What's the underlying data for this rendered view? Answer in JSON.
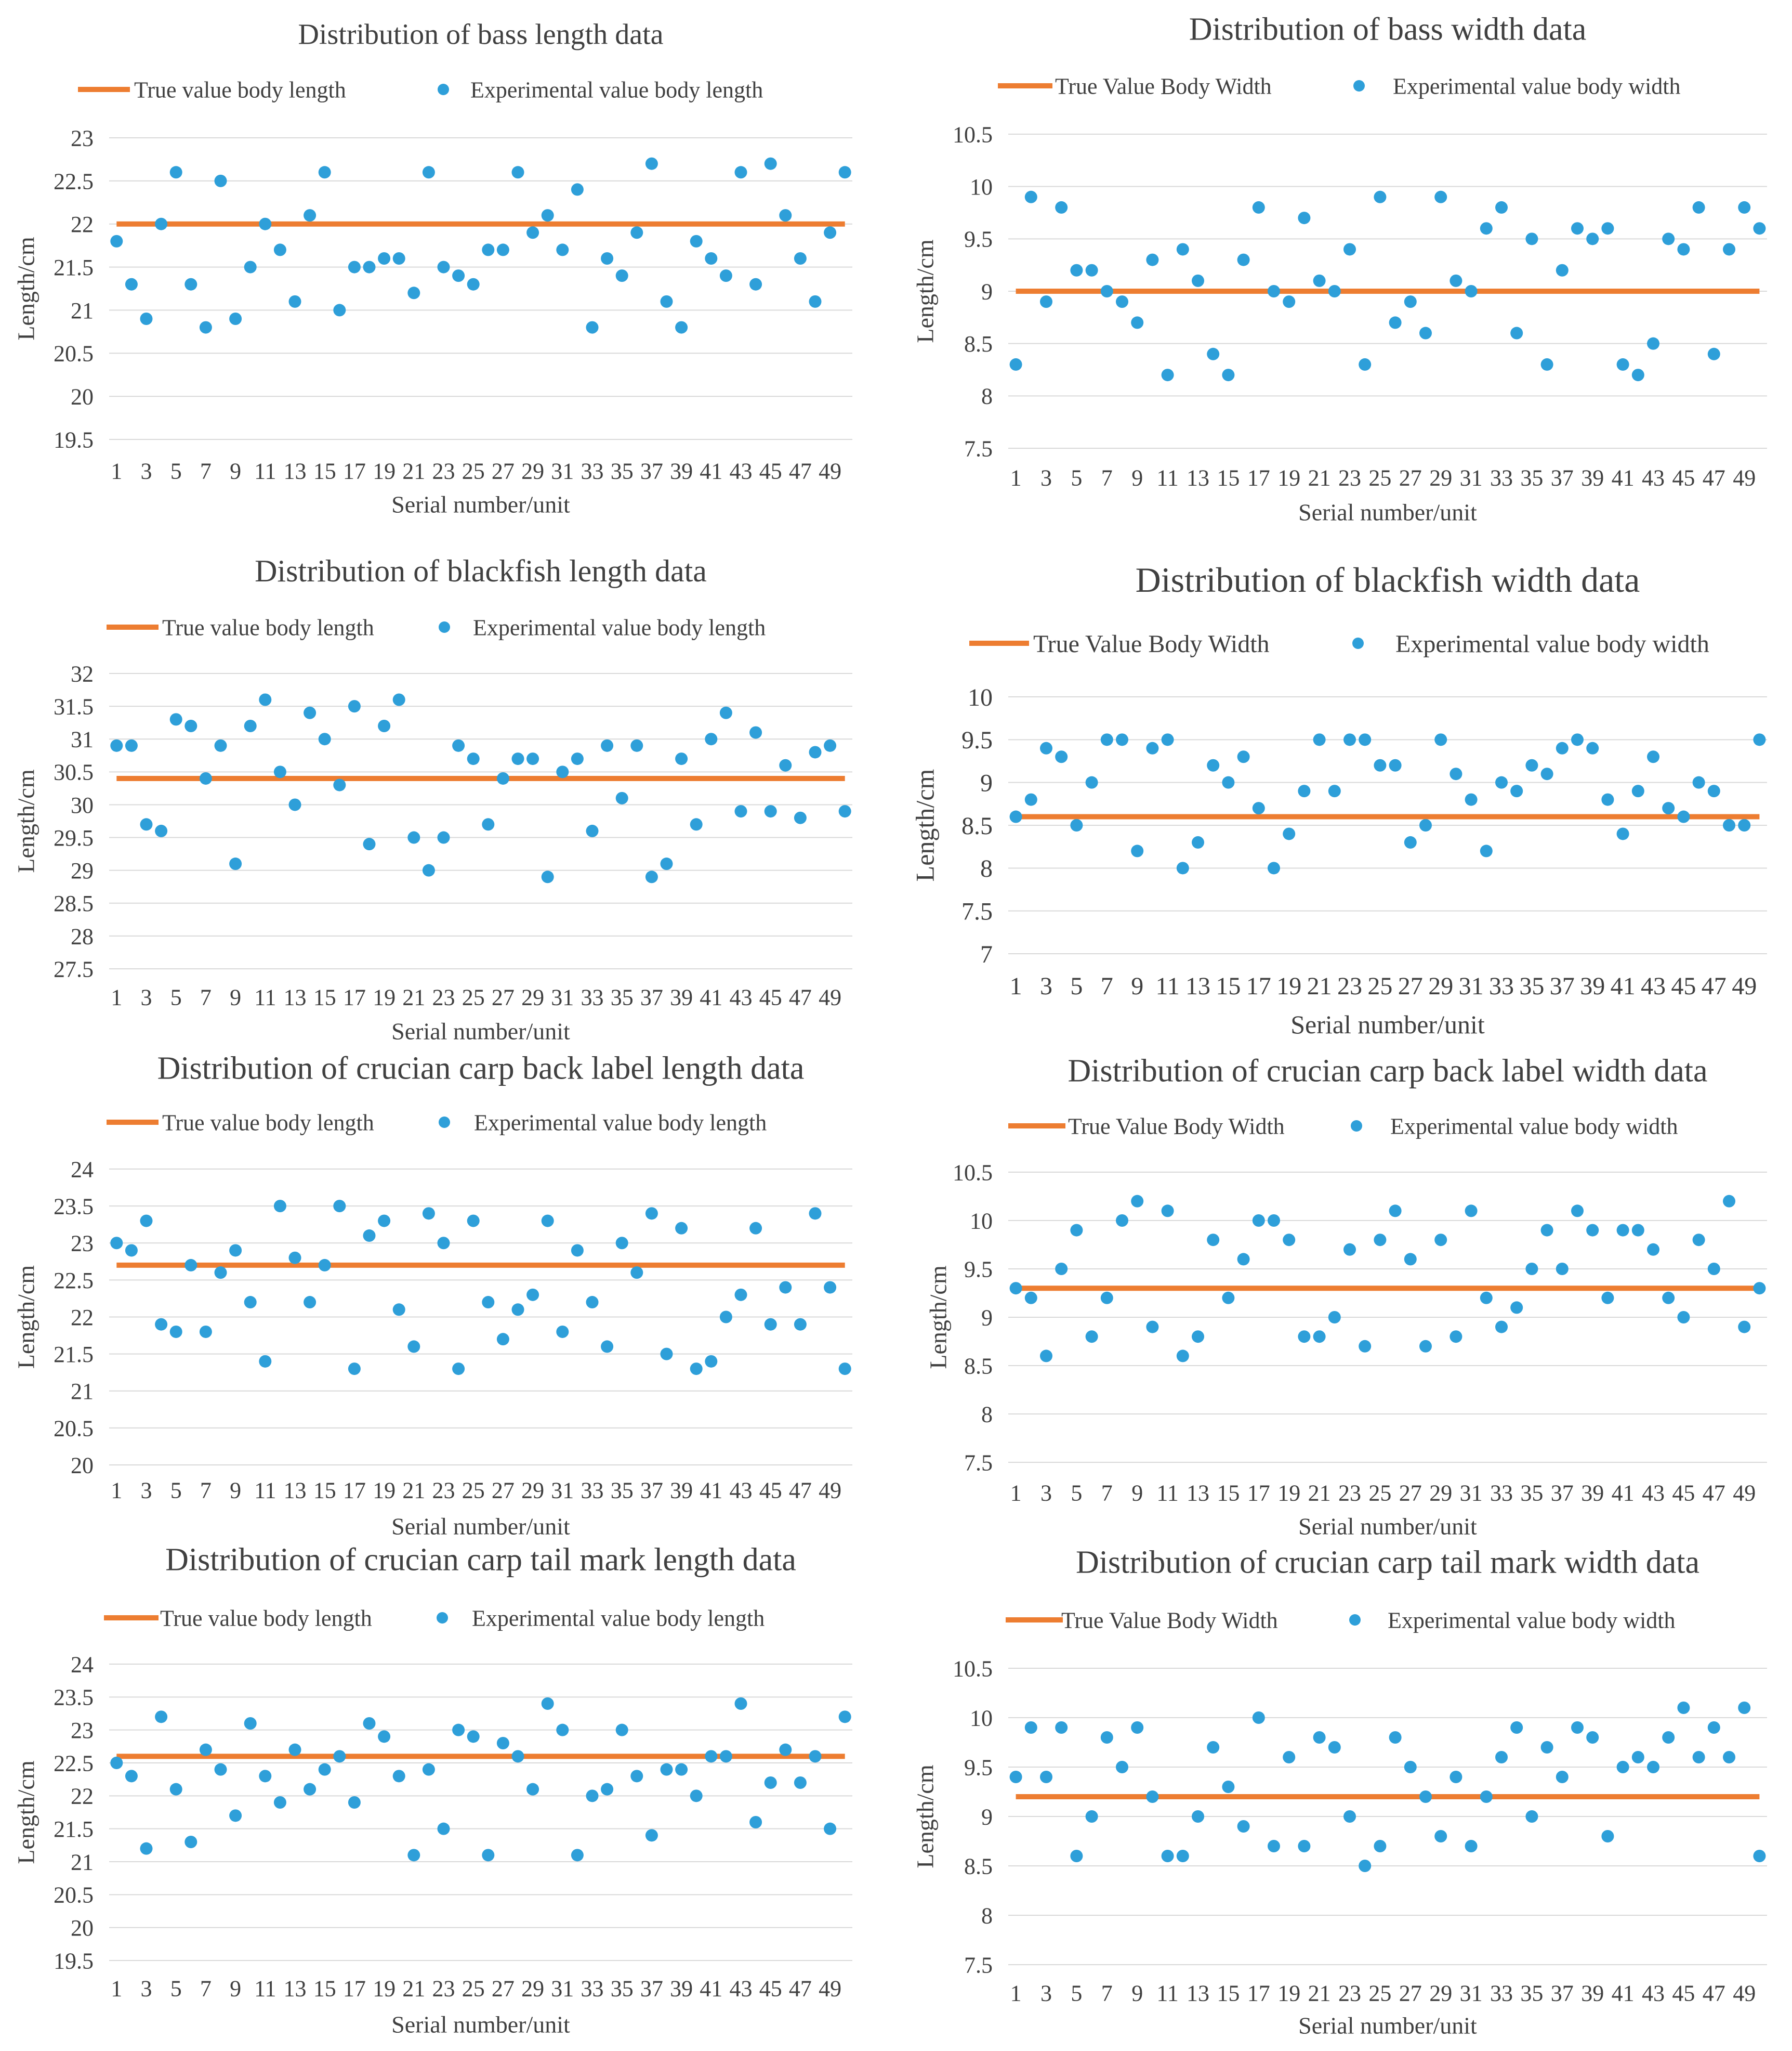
{
  "chart_data": [
    {
      "type": "scatter",
      "title": "Distribution of bass length data",
      "xlabel": "Serial number/unit",
      "ylabel": "Length/cm",
      "ylim": [
        19.5,
        23
      ],
      "yticks": [
        "19.5",
        "20",
        "20.5",
        "21",
        "21.5",
        "22",
        "22.5",
        "23"
      ],
      "xticks": [
        "1",
        "3",
        "5",
        "7",
        "9",
        "11",
        "13",
        "15",
        "17",
        "19",
        "21",
        "23",
        "25",
        "27",
        "29",
        "31",
        "33",
        "35",
        "37",
        "39",
        "41",
        "43",
        "45",
        "47",
        "49"
      ],
      "legend": {
        "position": "top",
        "line_label": "True value body length",
        "point_label": "Experimental value body length"
      },
      "true_value": 22,
      "values": [
        21.8,
        21.3,
        20.9,
        22.0,
        22.6,
        21.3,
        20.8,
        22.5,
        20.9,
        21.5,
        22.0,
        21.7,
        21.1,
        22.1,
        22.6,
        21.0,
        21.5,
        21.5,
        21.6,
        21.6,
        21.2,
        22.6,
        21.5,
        21.4,
        21.3,
        21.7,
        21.7,
        22.6,
        21.9,
        22.1,
        21.7,
        22.4,
        20.8,
        21.6,
        21.4,
        21.9,
        22.7,
        21.1,
        20.8,
        21.8,
        21.6,
        21.4,
        22.6,
        21.3,
        22.7,
        22.1,
        21.6,
        21.1,
        21.9,
        22.6
      ]
    },
    {
      "type": "scatter",
      "title": "Distribution of bass width data",
      "xlabel": "Serial number/unit",
      "ylabel": "Length/cm",
      "ylim": [
        7.5,
        10.5
      ],
      "yticks": [
        "7.5",
        "8",
        "8.5",
        "9",
        "9.5",
        "10",
        "10.5"
      ],
      "xticks": [
        "1",
        "3",
        "5",
        "7",
        "9",
        "11",
        "13",
        "15",
        "17",
        "19",
        "21",
        "23",
        "25",
        "27",
        "29",
        "31",
        "33",
        "35",
        "37",
        "39",
        "41",
        "43",
        "45",
        "47",
        "49"
      ],
      "legend": {
        "position": "top",
        "line_label": "True Value Body Width",
        "point_label": "Experimental value body width"
      },
      "true_value": 9,
      "values": [
        8.3,
        9.9,
        8.9,
        9.8,
        9.2,
        9.2,
        9.0,
        8.9,
        8.7,
        9.3,
        8.2,
        9.4,
        9.1,
        8.4,
        8.2,
        9.3,
        9.8,
        9.0,
        8.9,
        9.7,
        9.1,
        9.0,
        9.4,
        8.3,
        9.9,
        8.7,
        8.9,
        8.6,
        9.9,
        9.1,
        9.0,
        9.6,
        9.8,
        8.6,
        9.5,
        8.3,
        9.2,
        9.6,
        9.5,
        9.6,
        8.3,
        8.2,
        8.5,
        9.5,
        9.4,
        9.8,
        8.4,
        9.4,
        9.8,
        9.6
      ]
    },
    {
      "type": "scatter",
      "title": "Distribution of blackfish length data",
      "xlabel": "Serial number/unit",
      "ylabel": "Length/cm",
      "ylim": [
        27.5,
        32
      ],
      "yticks": [
        "27.5",
        "28",
        "28.5",
        "29",
        "29.5",
        "30",
        "30.5",
        "31",
        "31.5",
        "32"
      ],
      "xticks": [
        "1",
        "3",
        "5",
        "7",
        "9",
        "11",
        "13",
        "15",
        "17",
        "19",
        "21",
        "23",
        "25",
        "27",
        "29",
        "31",
        "33",
        "35",
        "37",
        "39",
        "41",
        "43",
        "45",
        "47",
        "49"
      ],
      "legend": {
        "position": "top",
        "line_label": "True value body length",
        "point_label": "Experimental value body length"
      },
      "true_value": 30.4,
      "values": [
        30.9,
        30.9,
        29.7,
        29.6,
        31.3,
        31.2,
        30.4,
        30.9,
        29.1,
        31.2,
        31.6,
        30.5,
        30.0,
        31.4,
        31.0,
        30.3,
        31.5,
        29.4,
        31.2,
        31.6,
        29.5,
        29.0,
        29.5,
        30.9,
        30.7,
        29.7,
        30.4,
        30.7,
        30.7,
        28.9,
        30.5,
        30.7,
        29.6,
        30.9,
        30.1,
        30.9,
        28.9,
        29.1,
        30.7,
        29.7,
        31.0,
        31.4,
        29.9,
        31.1,
        29.9,
        30.6,
        29.8,
        30.8,
        30.9,
        29.9
      ]
    },
    {
      "type": "scatter",
      "title": "Distribution of blackfish width data",
      "xlabel": "Serial number/unit",
      "ylabel": "Length/cm",
      "ylim": [
        7,
        10
      ],
      "yticks": [
        "7",
        "7.5",
        "8",
        "8.5",
        "9",
        "9.5",
        "10"
      ],
      "xticks": [
        "1",
        "3",
        "5",
        "7",
        "9",
        "11",
        "13",
        "15",
        "17",
        "19",
        "21",
        "23",
        "25",
        "27",
        "29",
        "31",
        "33",
        "35",
        "37",
        "39",
        "41",
        "43",
        "45",
        "47",
        "49"
      ],
      "legend": {
        "position": "top",
        "line_label": "True Value Body Width",
        "point_label": "Experimental value body width"
      },
      "true_value": 8.6,
      "values": [
        8.6,
        8.8,
        9.4,
        9.3,
        8.5,
        9.0,
        9.5,
        9.5,
        8.2,
        9.4,
        9.5,
        8.0,
        8.3,
        9.2,
        9.0,
        9.3,
        8.7,
        8.0,
        8.4,
        8.9,
        9.5,
        8.9,
        9.5,
        9.5,
        9.2,
        9.2,
        8.3,
        8.5,
        9.5,
        9.1,
        8.8,
        8.2,
        9.0,
        8.9,
        9.2,
        9.1,
        9.4,
        9.5,
        9.4,
        8.8,
        8.4,
        8.9,
        9.3,
        8.7,
        8.6,
        9.0,
        8.9,
        8.5,
        8.5,
        9.5
      ]
    },
    {
      "type": "scatter",
      "title": "Distribution of crucian carp back label length data",
      "xlabel": "Serial number/unit",
      "ylabel": "Length/cm",
      "ylim": [
        20,
        24
      ],
      "yticks": [
        "20",
        "20.5",
        "21",
        "21.5",
        "22",
        "22.5",
        "23",
        "23.5",
        "24"
      ],
      "xticks": [
        "1",
        "3",
        "5",
        "7",
        "9",
        "11",
        "13",
        "15",
        "17",
        "19",
        "21",
        "23",
        "25",
        "27",
        "29",
        "31",
        "33",
        "35",
        "37",
        "39",
        "41",
        "43",
        "45",
        "47",
        "49"
      ],
      "legend": {
        "position": "top",
        "line_label": "True value body length",
        "point_label": "Experimental value body length"
      },
      "true_value": 22.7,
      "values": [
        23.0,
        22.9,
        23.3,
        21.9,
        21.8,
        22.7,
        21.8,
        22.6,
        22.9,
        22.2,
        21.4,
        23.5,
        22.8,
        22.2,
        22.7,
        23.5,
        21.3,
        23.1,
        23.3,
        22.1,
        21.6,
        23.4,
        23.0,
        21.3,
        23.3,
        22.2,
        21.7,
        22.1,
        22.3,
        23.3,
        21.8,
        22.9,
        22.2,
        21.6,
        23.0,
        22.6,
        23.4,
        21.5,
        23.2,
        21.3,
        21.4,
        22.0,
        22.3,
        23.2,
        21.9,
        22.4,
        21.9,
        23.4,
        22.4,
        21.3
      ]
    },
    {
      "type": "scatter",
      "title": "Distribution of crucian carp back label width data",
      "xlabel": "Serial number/unit",
      "ylabel": "Length/cm",
      "ylim": [
        7.5,
        10.5
      ],
      "yticks": [
        "7.5",
        "8",
        "8.5",
        "9",
        "9.5",
        "10",
        "10.5"
      ],
      "xticks": [
        "1",
        "3",
        "5",
        "7",
        "9",
        "11",
        "13",
        "15",
        "17",
        "19",
        "21",
        "23",
        "25",
        "27",
        "29",
        "31",
        "33",
        "35",
        "37",
        "39",
        "41",
        "43",
        "45",
        "47",
        "49"
      ],
      "legend": {
        "position": "top",
        "line_label": "True Value Body Width",
        "point_label": "Experimental value body width"
      },
      "true_value": 9.3,
      "values": [
        9.3,
        9.2,
        8.6,
        9.5,
        9.9,
        8.8,
        9.2,
        10.0,
        10.2,
        8.9,
        10.1,
        8.6,
        8.8,
        9.8,
        9.2,
        9.6,
        10.0,
        10.0,
        9.8,
        8.8,
        8.8,
        9.0,
        9.7,
        8.7,
        9.8,
        10.1,
        9.6,
        8.7,
        9.8,
        8.8,
        10.1,
        9.2,
        8.9,
        9.1,
        9.5,
        9.9,
        9.5,
        10.1,
        9.9,
        9.2,
        9.9,
        9.9,
        9.7,
        9.2,
        9.0,
        9.8,
        9.5,
        10.2,
        8.9,
        9.3
      ]
    },
    {
      "type": "scatter",
      "title": "Distribution of crucian carp tail mark length data",
      "xlabel": "Serial number/unit",
      "ylabel": "Length/cm",
      "ylim": [
        19.5,
        24
      ],
      "yticks": [
        "19.5",
        "20",
        "20.5",
        "21",
        "21.5",
        "22",
        "22.5",
        "23",
        "23.5",
        "24"
      ],
      "xticks": [
        "1",
        "3",
        "5",
        "7",
        "9",
        "11",
        "13",
        "15",
        "17",
        "19",
        "21",
        "23",
        "25",
        "27",
        "29",
        "31",
        "33",
        "35",
        "37",
        "39",
        "41",
        "43",
        "45",
        "47",
        "49"
      ],
      "legend": {
        "position": "top",
        "line_label": "True value body length",
        "point_label": "Experimental value body length"
      },
      "true_value": 22.6,
      "values": [
        22.5,
        22.3,
        21.2,
        23.2,
        22.1,
        21.3,
        22.7,
        22.4,
        21.7,
        23.1,
        22.3,
        21.9,
        22.7,
        22.1,
        22.4,
        22.6,
        21.9,
        23.1,
        22.9,
        22.3,
        21.1,
        22.4,
        21.5,
        23.0,
        22.9,
        21.1,
        22.8,
        22.6,
        22.1,
        23.4,
        23.0,
        21.1,
        22.0,
        22.1,
        23.0,
        22.3,
        21.4,
        22.4,
        22.4,
        22.0,
        22.6,
        22.6,
        23.4,
        21.6,
        22.2,
        22.7,
        22.2,
        22.6,
        21.5,
        23.2
      ]
    },
    {
      "type": "scatter",
      "title": "Distribution of crucian carp tail mark width data",
      "xlabel": "Serial number/unit",
      "ylabel": "Length/cm",
      "ylim": [
        7.5,
        10.5
      ],
      "yticks": [
        "7.5",
        "8",
        "8.5",
        "9",
        "9.5",
        "10",
        "10.5"
      ],
      "xticks": [
        "1",
        "3",
        "5",
        "7",
        "9",
        "11",
        "13",
        "15",
        "17",
        "19",
        "21",
        "23",
        "25",
        "27",
        "29",
        "31",
        "33",
        "35",
        "37",
        "39",
        "41",
        "43",
        "45",
        "47",
        "49"
      ],
      "legend": {
        "position": "top",
        "line_label": "True Value Body Width",
        "point_label": "Experimental value body width"
      },
      "true_value": 9.2,
      "values": [
        9.4,
        9.9,
        9.4,
        9.9,
        8.6,
        9.0,
        9.8,
        9.5,
        9.9,
        9.2,
        8.6,
        8.6,
        9.0,
        9.7,
        9.3,
        8.9,
        10.0,
        8.7,
        9.6,
        8.7,
        9.8,
        9.7,
        9.0,
        8.5,
        8.7,
        9.8,
        9.5,
        9.2,
        8.8,
        9.4,
        8.7,
        9.2,
        9.6,
        9.9,
        9.0,
        9.7,
        9.4,
        9.9,
        9.8,
        8.8,
        9.5,
        9.6,
        9.5,
        9.8,
        10.1,
        9.6,
        9.9,
        9.6,
        10.1,
        8.6
      ]
    }
  ],
  "colors": {
    "true_line": "#ED7D31",
    "points": "#2E9FD9",
    "gridline": "#D9D9D9",
    "text": "#404040",
    "title": "#404040"
  }
}
